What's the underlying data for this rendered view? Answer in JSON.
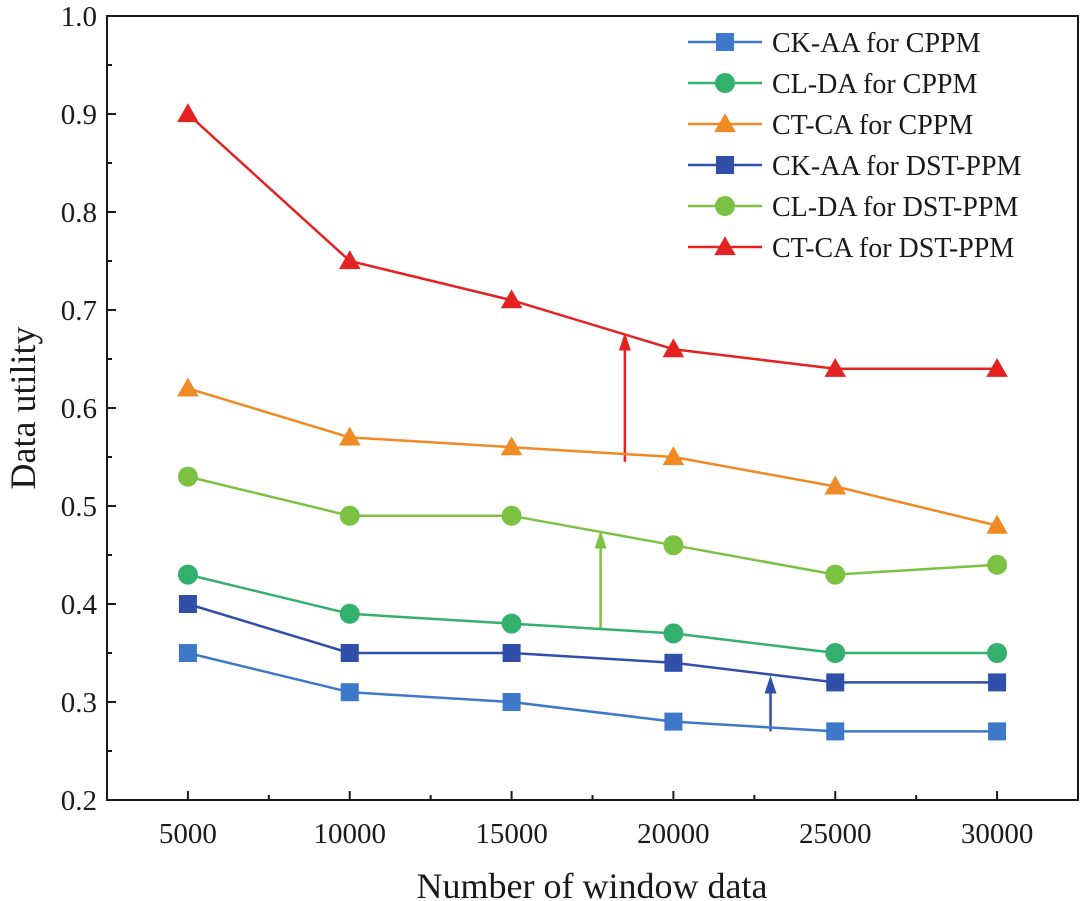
{
  "chart_data": {
    "type": "line",
    "title": "",
    "xlabel": "Number of window data",
    "ylabel": "Data utility",
    "x": [
      5000,
      10000,
      15000,
      20000,
      25000,
      30000
    ],
    "xlim": [
      2500,
      32500
    ],
    "ylim": [
      0.2,
      1.0
    ],
    "xticks": [
      "5000",
      "10000",
      "15000",
      "20000",
      "25000",
      "30000"
    ],
    "yticks": [
      "0.2",
      "0.3",
      "0.4",
      "0.5",
      "0.6",
      "0.7",
      "0.8",
      "0.9",
      "1.0"
    ],
    "legend_position": "top-right",
    "grid": false,
    "series": [
      {
        "name": "CK-AA for CPPM",
        "color": "#3e78c8",
        "marker": "square",
        "values": [
          0.35,
          0.31,
          0.3,
          0.28,
          0.27,
          0.27
        ]
      },
      {
        "name": "CL-DA for CPPM",
        "color": "#33b06c",
        "marker": "circle",
        "values": [
          0.43,
          0.39,
          0.38,
          0.37,
          0.35,
          0.35
        ]
      },
      {
        "name": "CT-CA for CPPM",
        "color": "#f08a24",
        "marker": "triangle",
        "values": [
          0.62,
          0.57,
          0.56,
          0.55,
          0.52,
          0.48
        ]
      },
      {
        "name": "CK-AA for DST-PPM",
        "color": "#2f4fa8",
        "marker": "square",
        "values": [
          0.4,
          0.35,
          0.35,
          0.34,
          0.32,
          0.32
        ]
      },
      {
        "name": "CL-DA for DST-PPM",
        "color": "#7cc242",
        "marker": "circle",
        "values": [
          0.53,
          0.49,
          0.49,
          0.46,
          0.43,
          0.44
        ]
      },
      {
        "name": "CT-CA for DST-PPM",
        "color": "#e52222",
        "marker": "triangle",
        "values": [
          0.9,
          0.75,
          0.71,
          0.66,
          0.64,
          0.64
        ]
      }
    ],
    "annotations": [
      {
        "type": "arrow",
        "color": "#2f4fa8",
        "x": 23000,
        "y_from": 0.27,
        "y_to": 0.327
      },
      {
        "type": "arrow",
        "color": "#7cc242",
        "x": 17750,
        "y_from": 0.375,
        "y_to": 0.475
      },
      {
        "type": "arrow",
        "color": "#e52222",
        "x": 18500,
        "y_from": 0.545,
        "y_to": 0.677
      }
    ]
  }
}
